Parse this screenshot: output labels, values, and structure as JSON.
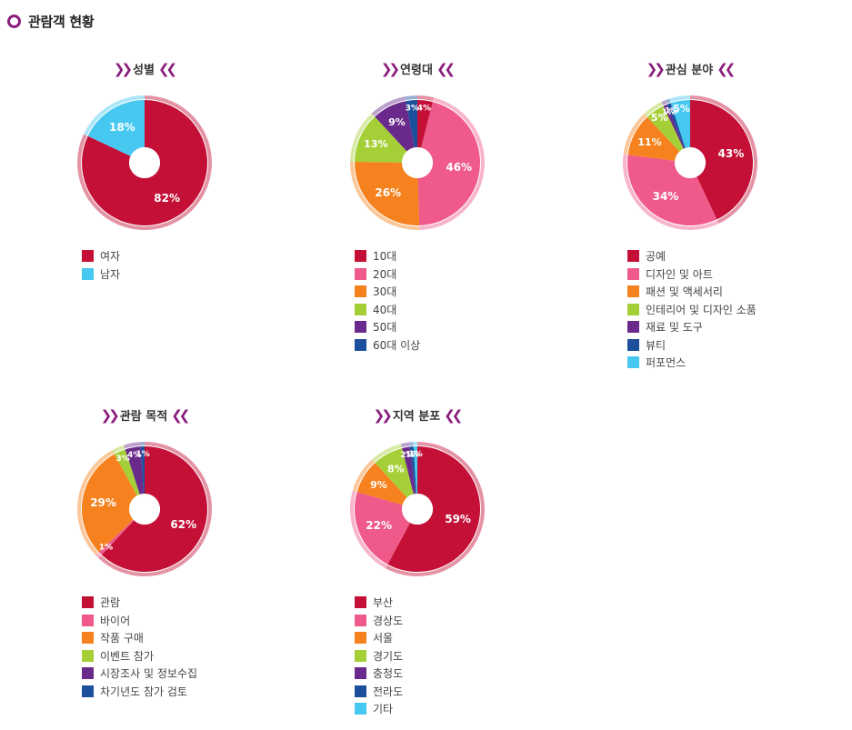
{
  "page": {
    "title": "관람객 현황",
    "icon": "circle-bullet-icon",
    "accent": "#8a1d7d"
  },
  "chart_data": [
    {
      "type": "pie",
      "title": "성별",
      "categories": [
        "여자",
        "남자"
      ],
      "values": [
        82,
        18
      ],
      "labels": [
        "82%",
        "18%"
      ],
      "colors": [
        "#c41037",
        "#46c8f0"
      ]
    },
    {
      "type": "pie",
      "title": "연령대",
      "categories": [
        "10대",
        "20대",
        "30대",
        "40대",
        "50대",
        "60대 이상"
      ],
      "values": [
        4,
        46,
        26,
        13,
        9,
        3
      ],
      "labels": [
        "4%",
        "46%",
        "26%",
        "13%",
        "9%",
        "3%"
      ],
      "colors": [
        "#c41037",
        "#ef5a8a",
        "#f5821f",
        "#a5cf37",
        "#6a2a8b",
        "#1c4f9c"
      ]
    },
    {
      "type": "pie",
      "title": "관심 분야",
      "categories": [
        "공예",
        "디자인 및 아트",
        "패션 및 액세서리",
        "인테리어 및 디자인 소품",
        "재료 및 도구",
        "뷰티",
        "퍼포먼스"
      ],
      "values": [
        43,
        34,
        11,
        5,
        1,
        1,
        5
      ],
      "labels": [
        "43%",
        "34%",
        "11%",
        "5%",
        "1%",
        "1%",
        "5%"
      ],
      "colors": [
        "#c41037",
        "#ef5a8a",
        "#f5821f",
        "#a5cf37",
        "#6a2a8b",
        "#1c4f9c",
        "#46c8f0"
      ]
    },
    {
      "type": "pie",
      "title": "관람 목적",
      "categories": [
        "관람",
        "바이어",
        "작품 구매",
        "이벤트 참가",
        "시장조사 및 정보수집",
        "차기년도 참가 검토"
      ],
      "values": [
        62,
        1,
        29,
        3,
        4,
        1
      ],
      "labels": [
        "62%",
        "1%",
        "29%",
        "3%",
        "4%",
        "1%"
      ],
      "colors": [
        "#c41037",
        "#ef5a8a",
        "#f5821f",
        "#a5cf37",
        "#6a2a8b",
        "#1c4f9c"
      ]
    },
    {
      "type": "pie",
      "title": "지역 분포",
      "categories": [
        "부산",
        "경상도",
        "서울",
        "경기도",
        "충청도",
        "전라도",
        "기타"
      ],
      "values": [
        59,
        22,
        9,
        8,
        2,
        1,
        1
      ],
      "labels": [
        "59%",
        "22%",
        "9%",
        "8%",
        "2%",
        "1%",
        "1%"
      ],
      "colors": [
        "#c41037",
        "#ef5a8a",
        "#f5821f",
        "#a5cf37",
        "#6a2a8b",
        "#1c4f9c",
        "#46c8f0"
      ]
    }
  ]
}
